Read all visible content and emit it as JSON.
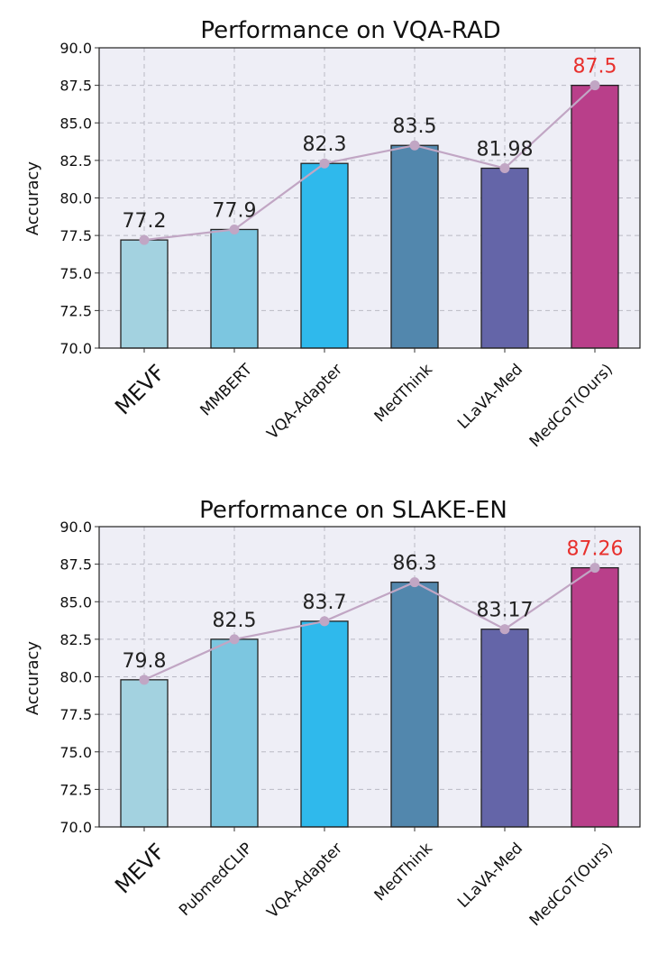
{
  "chart_data": [
    {
      "type": "bar",
      "title": "Performance on VQA-RAD",
      "ylabel": "Accuracy",
      "xlabel": "",
      "ylim": [
        70.0,
        90.0
      ],
      "yticks": [
        "70.0",
        "72.5",
        "75.0",
        "77.5",
        "80.0",
        "82.5",
        "85.0",
        "87.5",
        "90.0"
      ],
      "categories": [
        "MEVF",
        "MMBERT",
        "VQA-Adapter",
        "MedThink",
        "LLaVA-Med",
        "MedCoT(Ours)"
      ],
      "values": [
        77.2,
        77.9,
        82.3,
        83.5,
        81.98,
        87.5
      ],
      "value_labels": [
        "77.2",
        "77.9",
        "82.3",
        "83.5",
        "81.98",
        "87.5"
      ],
      "bar_colors": [
        "#a3d2e0",
        "#7cc6e0",
        "#2fb9ec",
        "#5287ad",
        "#6465a8",
        "#b93f8a"
      ],
      "label_colors": [
        "#222222",
        "#222222",
        "#222222",
        "#222222",
        "#222222",
        "#e8302d"
      ],
      "line_color": "#c1a6c4",
      "grid": true,
      "overlay_line": true
    },
    {
      "type": "bar",
      "title": "Performance on SLAKE-EN",
      "ylabel": "Accuracy",
      "xlabel": "",
      "ylim": [
        70.0,
        90.0
      ],
      "yticks": [
        "70.0",
        "72.5",
        "75.0",
        "77.5",
        "80.0",
        "82.5",
        "85.0",
        "87.5",
        "90.0"
      ],
      "categories": [
        "MEVF",
        "PubmedCLIP",
        "VQA-Adapter",
        "MedThink",
        "LLaVA-Med",
        "MedCoT(Ours)"
      ],
      "values": [
        79.8,
        82.5,
        83.7,
        86.3,
        83.17,
        87.26
      ],
      "value_labels": [
        "79.8",
        "82.5",
        "83.7",
        "86.3",
        "83.17",
        "87.26"
      ],
      "bar_colors": [
        "#a3d2e0",
        "#7cc6e0",
        "#2fb9ec",
        "#5287ad",
        "#6465a8",
        "#b93f8a"
      ],
      "label_colors": [
        "#222222",
        "#222222",
        "#222222",
        "#222222",
        "#222222",
        "#e8302d"
      ],
      "line_color": "#c1a6c4",
      "grid": true,
      "overlay_line": true
    }
  ]
}
